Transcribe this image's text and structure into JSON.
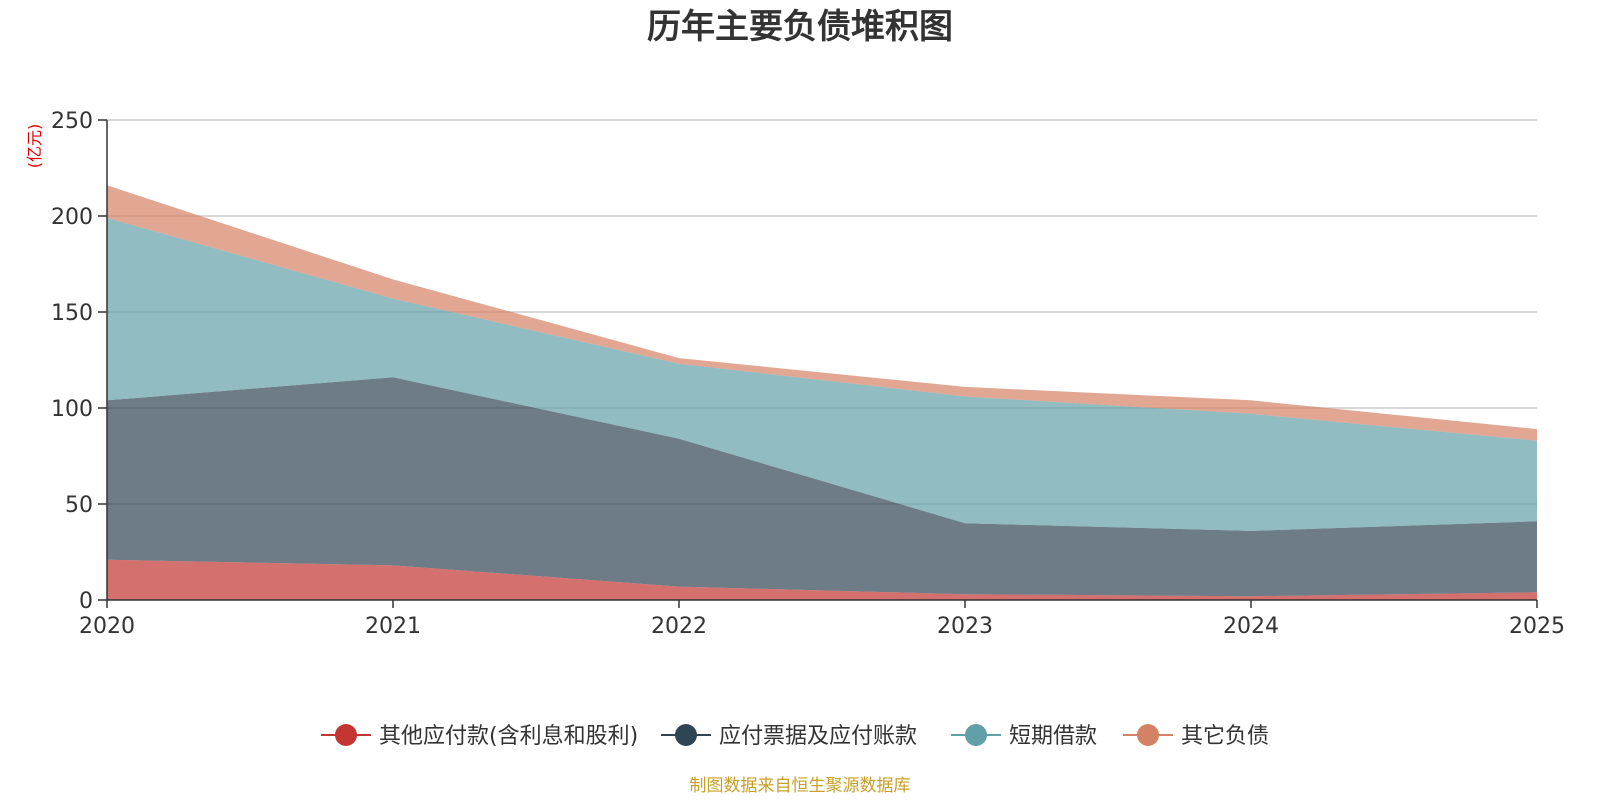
{
  "chart_data": {
    "type": "area",
    "stacked": true,
    "title": "历年主要负债堆积图",
    "ylabel": "(亿元)",
    "xlabel": "",
    "categories": [
      "2020",
      "2021",
      "2022",
      "2023",
      "2024",
      "2025"
    ],
    "ylim": [
      0,
      250
    ],
    "yticks": [
      0,
      50,
      100,
      150,
      200,
      250
    ],
    "grid": true,
    "legend_position": "bottom",
    "series": [
      {
        "name": "其他应付款(含利息和股利)",
        "color": "#c23531",
        "values": [
          21,
          18,
          7,
          3,
          2,
          4
        ]
      },
      {
        "name": "应付票据及应付账款",
        "color": "#2f4554",
        "values": [
          83,
          98,
          77,
          37,
          34,
          37
        ]
      },
      {
        "name": "短期借款",
        "color": "#61a0a8",
        "values": [
          95,
          41,
          39,
          66,
          61,
          42
        ]
      },
      {
        "name": "其它负债",
        "color": "#d48265",
        "values": [
          17,
          10,
          3,
          5,
          7,
          6
        ]
      }
    ],
    "source_note": "制图数据来自恒生聚源数据库",
    "unit_color": "#e30000",
    "source_color": "#c8a028"
  }
}
